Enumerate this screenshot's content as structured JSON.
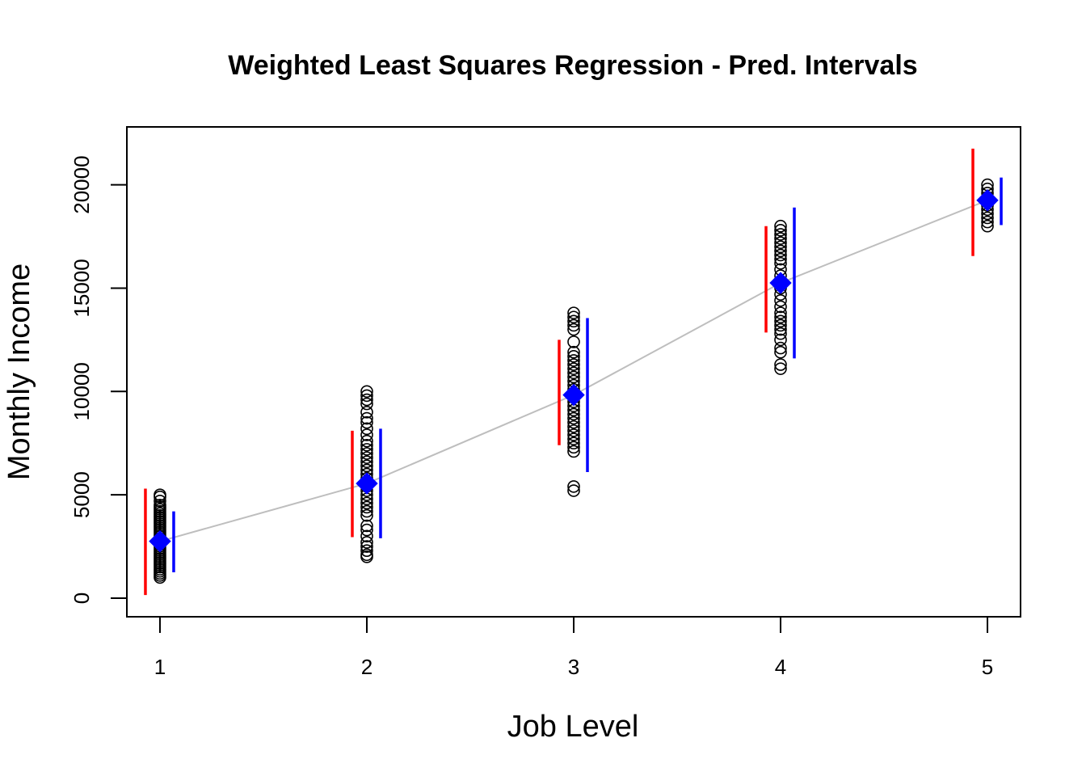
{
  "chart_data": {
    "type": "scatter",
    "title": "Weighted Least Squares Regression - Pred. Intervals",
    "xlabel": "Job Level",
    "ylabel": "Monthly Income",
    "xlim": [
      0.84,
      5.16
    ],
    "ylim": [
      -900,
      22800
    ],
    "x_ticks": [
      "1",
      "2",
      "3",
      "4",
      "5"
    ],
    "y_ticks": [
      "0",
      "5000",
      "10000",
      "15000",
      "20000"
    ],
    "grid": false,
    "legend": "none",
    "observations": [
      {
        "x": 1,
        "y": [
          1000,
          1100,
          1200,
          1300,
          1400,
          1500,
          1600,
          1700,
          1800,
          1900,
          2000,
          2100,
          2200,
          2300,
          2400,
          2500,
          2600,
          2700,
          2800,
          2900,
          3000,
          3100,
          3200,
          3300,
          3400,
          3500,
          3600,
          3700,
          3800,
          3900,
          4000,
          4100,
          4200,
          4300,
          4400,
          4500,
          4700,
          4900,
          5000
        ]
      },
      {
        "x": 2,
        "y": [
          2000,
          2100,
          2300,
          2500,
          2700,
          3000,
          3300,
          3500,
          4000,
          4200,
          4400,
          4600,
          4800,
          5000,
          5200,
          5400,
          5600,
          5800,
          6000,
          6200,
          6400,
          6600,
          6800,
          7000,
          7200,
          7400,
          7600,
          7900,
          8200,
          8500,
          8700,
          9000,
          9400,
          9600,
          9800,
          10000
        ]
      },
      {
        "x": 3,
        "y": [
          5200,
          5400,
          7100,
          7300,
          7500,
          7700,
          7900,
          8100,
          8300,
          8500,
          8700,
          8900,
          9100,
          9300,
          9500,
          9700,
          9900,
          10100,
          10300,
          10500,
          10700,
          10900,
          11100,
          11300,
          11500,
          11700,
          11900,
          12400,
          13000,
          13200,
          13400,
          13600,
          13800
        ]
      },
      {
        "x": 4,
        "y": [
          11100,
          11300,
          11900,
          12100,
          12500,
          12800,
          13000,
          13200,
          13400,
          13600,
          13800,
          14100,
          14400,
          14700,
          15000,
          15300,
          15600,
          15900,
          16200,
          16400,
          16600,
          16800,
          17000,
          17200,
          17400,
          17600,
          17800,
          18000
        ]
      },
      {
        "x": 5,
        "y": [
          18000,
          18200,
          18400,
          18600,
          18800,
          19000,
          19200,
          19400,
          19600,
          19800,
          20000
        ]
      }
    ],
    "fitted": {
      "x": [
        1,
        2,
        3,
        4,
        5
      ],
      "y": [
        2750,
        5550,
        9830,
        15250,
        19250
      ],
      "color": "#0000ff"
    },
    "fit_line_color": "#bebebe",
    "intervals_red": [
      {
        "x": 1,
        "lower": 150,
        "upper": 5300
      },
      {
        "x": 2,
        "lower": 2950,
        "upper": 8100
      },
      {
        "x": 3,
        "lower": 7400,
        "upper": 12500
      },
      {
        "x": 4,
        "lower": 12850,
        "upper": 18000
      },
      {
        "x": 5,
        "lower": 16550,
        "upper": 21750
      }
    ],
    "intervals_blue": [
      {
        "x": 1,
        "lower": 1250,
        "upper": 4200
      },
      {
        "x": 2,
        "lower": 2900,
        "upper": 8200
      },
      {
        "x": 3,
        "lower": 6100,
        "upper": 13550
      },
      {
        "x": 4,
        "lower": 11600,
        "upper": 18900
      },
      {
        "x": 5,
        "lower": 18050,
        "upper": 20350
      }
    ],
    "colors": {
      "red_interval": "#ff0000",
      "blue_interval": "#0000ff",
      "points": "#000000"
    }
  }
}
